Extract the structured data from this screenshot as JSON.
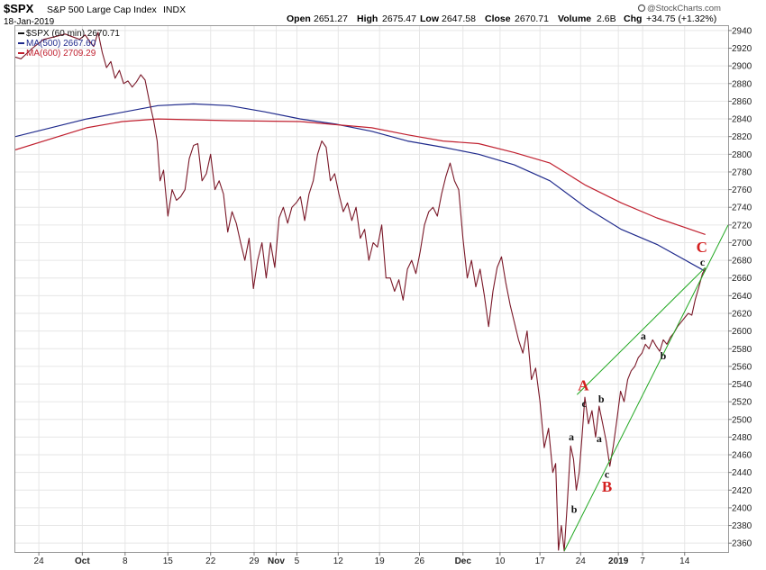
{
  "header": {
    "symbol": "$SPX",
    "name": "S&P 500 Large Cap Index",
    "exchange": "INDX",
    "date": "18-Jan-2019",
    "open_label": "Open",
    "open": "2651.27",
    "high_label": "High",
    "high": "2675.47",
    "low_label": "Low",
    "low": "2647.58",
    "close_label": "Close",
    "close": "2670.71",
    "volume_label": "Volume",
    "volume": "2.6B",
    "chg_label": "Chg",
    "chg": "+34.75 (+1.32%)",
    "watermark": "@StockCharts.com"
  },
  "chart_data": {
    "type": "line",
    "title": "$SPX S&P 500 Large Cap Index INDX",
    "interval": "60 min",
    "ylim": [
      2350,
      2945
    ],
    "y_ticks": [
      2360,
      2380,
      2400,
      2420,
      2440,
      2460,
      2480,
      2500,
      2520,
      2540,
      2560,
      2580,
      2600,
      2620,
      2640,
      2660,
      2680,
      2700,
      2720,
      2740,
      2760,
      2780,
      2800,
      2820,
      2840,
      2860,
      2880,
      2900,
      2920,
      2940
    ],
    "x_range": [
      0,
      100
    ],
    "x_ticks": [
      {
        "label": "24",
        "x": 3.3
      },
      {
        "label": "Oct",
        "x": 9.4
      },
      {
        "label": "8",
        "x": 15.4
      },
      {
        "label": "15",
        "x": 21.4
      },
      {
        "label": "22",
        "x": 27.4
      },
      {
        "label": "29",
        "x": 33.5
      },
      {
        "label": "Nov",
        "x": 36.6
      },
      {
        "label": "5",
        "x": 39.5
      },
      {
        "label": "12",
        "x": 45.3
      },
      {
        "label": "19",
        "x": 51.1
      },
      {
        "label": "26",
        "x": 56.7
      },
      {
        "label": "Dec",
        "x": 62.8
      },
      {
        "label": "10",
        "x": 68.0
      },
      {
        "label": "17",
        "x": 73.6
      },
      {
        "label": "24",
        "x": 79.3
      },
      {
        "label": "2019",
        "x": 84.6
      },
      {
        "label": "7",
        "x": 88.0
      },
      {
        "label": "14",
        "x": 93.9
      }
    ],
    "legend": [
      {
        "label": "$SPX (60 min) 2670.71",
        "color": "#111111"
      },
      {
        "label": "MA(500) 2667.60",
        "color": "#1f2a8c"
      },
      {
        "label": "MA(600) 2709.29",
        "color": "#c0202f"
      }
    ],
    "series": [
      {
        "name": "$SPX (60 min)",
        "color": "#7a1828",
        "points": [
          [
            0,
            2910
          ],
          [
            0.8,
            2908
          ],
          [
            1.6,
            2914
          ],
          [
            2.4,
            2920
          ],
          [
            3.2,
            2925
          ],
          [
            4,
            2930
          ],
          [
            5,
            2932
          ],
          [
            6,
            2934
          ],
          [
            7,
            2936
          ],
          [
            8,
            2933
          ],
          [
            9,
            2930
          ],
          [
            9.8,
            2935
          ],
          [
            10.4,
            2928
          ],
          [
            11,
            2922
          ],
          [
            11.6,
            2938
          ],
          [
            12.2,
            2915
          ],
          [
            12.8,
            2898
          ],
          [
            13.4,
            2905
          ],
          [
            14,
            2886
          ],
          [
            14.6,
            2895
          ],
          [
            15.2,
            2880
          ],
          [
            15.8,
            2883
          ],
          [
            16.4,
            2876
          ],
          [
            17,
            2882
          ],
          [
            17.6,
            2890
          ],
          [
            18.2,
            2884
          ],
          [
            18.8,
            2860
          ],
          [
            19.4,
            2838
          ],
          [
            19.9,
            2815
          ],
          [
            20.3,
            2770
          ],
          [
            20.8,
            2782
          ],
          [
            21.4,
            2730
          ],
          [
            22,
            2760
          ],
          [
            22.6,
            2748
          ],
          [
            23.2,
            2752
          ],
          [
            23.8,
            2760
          ],
          [
            24.4,
            2795
          ],
          [
            25,
            2810
          ],
          [
            25.6,
            2812
          ],
          [
            26.2,
            2770
          ],
          [
            26.8,
            2778
          ],
          [
            27.4,
            2800
          ],
          [
            28,
            2760
          ],
          [
            28.6,
            2770
          ],
          [
            29.2,
            2755
          ],
          [
            29.8,
            2712
          ],
          [
            30.4,
            2735
          ],
          [
            31,
            2722
          ],
          [
            31.6,
            2700
          ],
          [
            32.2,
            2680
          ],
          [
            32.8,
            2705
          ],
          [
            33.4,
            2648
          ],
          [
            34,
            2680
          ],
          [
            34.6,
            2700
          ],
          [
            35.2,
            2660
          ],
          [
            35.8,
            2700
          ],
          [
            36.4,
            2672
          ],
          [
            37,
            2728
          ],
          [
            37.6,
            2740
          ],
          [
            38.2,
            2722
          ],
          [
            38.8,
            2740
          ],
          [
            39.4,
            2745
          ],
          [
            40,
            2752
          ],
          [
            40.6,
            2725
          ],
          [
            41.2,
            2755
          ],
          [
            41.8,
            2770
          ],
          [
            42.4,
            2800
          ],
          [
            43,
            2815
          ],
          [
            43.6,
            2808
          ],
          [
            44.2,
            2770
          ],
          [
            44.8,
            2778
          ],
          [
            45.4,
            2755
          ],
          [
            46,
            2735
          ],
          [
            46.6,
            2745
          ],
          [
            47.2,
            2725
          ],
          [
            47.8,
            2740
          ],
          [
            48.4,
            2705
          ],
          [
            49,
            2715
          ],
          [
            49.6,
            2680
          ],
          [
            50.2,
            2700
          ],
          [
            50.8,
            2695
          ],
          [
            51.4,
            2720
          ],
          [
            52,
            2660
          ],
          [
            52.6,
            2660
          ],
          [
            53.2,
            2645
          ],
          [
            53.8,
            2658
          ],
          [
            54.4,
            2635
          ],
          [
            55,
            2670
          ],
          [
            55.6,
            2680
          ],
          [
            56.2,
            2665
          ],
          [
            56.8,
            2690
          ],
          [
            57.4,
            2720
          ],
          [
            58,
            2735
          ],
          [
            58.6,
            2740
          ],
          [
            59.2,
            2730
          ],
          [
            59.8,
            2755
          ],
          [
            60.4,
            2775
          ],
          [
            61,
            2790
          ],
          [
            61.6,
            2770
          ],
          [
            62.2,
            2760
          ],
          [
            62.8,
            2705
          ],
          [
            63.4,
            2660
          ],
          [
            64,
            2680
          ],
          [
            64.6,
            2650
          ],
          [
            65.2,
            2670
          ],
          [
            65.8,
            2640
          ],
          [
            66.4,
            2605
          ],
          [
            67,
            2645
          ],
          [
            67.6,
            2672
          ],
          [
            68.2,
            2684
          ],
          [
            68.8,
            2655
          ],
          [
            69.4,
            2630
          ],
          [
            70,
            2610
          ],
          [
            70.6,
            2590
          ],
          [
            71.2,
            2575
          ],
          [
            71.8,
            2600
          ],
          [
            72.4,
            2545
          ],
          [
            73,
            2558
          ],
          [
            73.6,
            2520
          ],
          [
            74.2,
            2468
          ],
          [
            74.8,
            2490
          ],
          [
            75.4,
            2440
          ],
          [
            75.8,
            2450
          ],
          [
            76.2,
            2352
          ],
          [
            76.6,
            2380
          ],
          [
            77,
            2351
          ],
          [
            77.4,
            2400
          ],
          [
            77.9,
            2470
          ],
          [
            78.3,
            2455
          ],
          [
            78.7,
            2420
          ],
          [
            79.1,
            2440
          ],
          [
            79.5,
            2480
          ],
          [
            79.9,
            2525
          ],
          [
            80.4,
            2495
          ],
          [
            80.9,
            2510
          ],
          [
            81.4,
            2480
          ],
          [
            81.9,
            2515
          ],
          [
            82.4,
            2495
          ],
          [
            82.9,
            2475
          ],
          [
            83.4,
            2447
          ],
          [
            83.9,
            2470
          ],
          [
            84.4,
            2500
          ],
          [
            84.9,
            2532
          ],
          [
            85.4,
            2520
          ],
          [
            85.9,
            2545
          ],
          [
            86.4,
            2555
          ],
          [
            86.9,
            2560
          ],
          [
            87.4,
            2570
          ],
          [
            87.9,
            2575
          ],
          [
            88.4,
            2585
          ],
          [
            88.9,
            2580
          ],
          [
            89.4,
            2590
          ],
          [
            89.9,
            2583
          ],
          [
            90.4,
            2577
          ],
          [
            90.9,
            2590
          ],
          [
            91.4,
            2585
          ],
          [
            91.9,
            2593
          ],
          [
            92.4,
            2598
          ],
          [
            92.9,
            2605
          ],
          [
            93.4,
            2610
          ],
          [
            93.9,
            2615
          ],
          [
            94.4,
            2620
          ],
          [
            94.9,
            2618
          ],
          [
            95.4,
            2636
          ],
          [
            95.9,
            2650
          ],
          [
            96.4,
            2665
          ],
          [
            96.8,
            2670.71
          ]
        ]
      },
      {
        "name": "MA(500)",
        "color": "#1f2a8c",
        "points": [
          [
            0,
            2820
          ],
          [
            10,
            2840
          ],
          [
            20,
            2855
          ],
          [
            25,
            2857
          ],
          [
            30,
            2855
          ],
          [
            35,
            2848
          ],
          [
            40,
            2840
          ],
          [
            45,
            2834
          ],
          [
            50,
            2826
          ],
          [
            55,
            2815
          ],
          [
            60,
            2808
          ],
          [
            65,
            2800
          ],
          [
            70,
            2788
          ],
          [
            75,
            2770
          ],
          [
            80,
            2740
          ],
          [
            85,
            2715
          ],
          [
            90,
            2698
          ],
          [
            96.8,
            2667.6
          ]
        ]
      },
      {
        "name": "MA(600)",
        "color": "#c0202f",
        "points": [
          [
            0,
            2805
          ],
          [
            10,
            2830
          ],
          [
            15,
            2837
          ],
          [
            20,
            2840
          ],
          [
            30,
            2838
          ],
          [
            40,
            2837
          ],
          [
            50,
            2830
          ],
          [
            55,
            2822
          ],
          [
            60,
            2815
          ],
          [
            65,
            2812
          ],
          [
            70,
            2802
          ],
          [
            75,
            2790
          ],
          [
            80,
            2765
          ],
          [
            85,
            2745
          ],
          [
            90,
            2728
          ],
          [
            96.8,
            2709.29
          ]
        ]
      }
    ],
    "trendlines": [
      {
        "name": "channel-upper",
        "color": "#22a822",
        "points": [
          [
            78.8,
            2528
          ],
          [
            96.8,
            2672
          ]
        ]
      },
      {
        "name": "channel-lower",
        "color": "#22a822",
        "points": [
          [
            77.0,
            2351
          ],
          [
            100,
            2720
          ]
        ]
      }
    ],
    "annotations": [
      {
        "text": "A",
        "x": 79.7,
        "y": 2537,
        "style": "major"
      },
      {
        "text": "B",
        "x": 83.0,
        "y": 2422,
        "style": "major"
      },
      {
        "text": "C",
        "x": 96.3,
        "y": 2693,
        "style": "major"
      },
      {
        "text": "a",
        "x": 78.0,
        "y": 2479,
        "style": "minor"
      },
      {
        "text": "b",
        "x": 78.4,
        "y": 2397,
        "style": "minor"
      },
      {
        "text": "c",
        "x": 79.8,
        "y": 2517,
        "style": "minor"
      },
      {
        "text": "b",
        "x": 82.2,
        "y": 2522,
        "style": "minor"
      },
      {
        "text": "a",
        "x": 81.9,
        "y": 2477,
        "style": "minor"
      },
      {
        "text": "c",
        "x": 83.0,
        "y": 2437,
        "style": "minor"
      },
      {
        "text": "a",
        "x": 88.1,
        "y": 2593,
        "style": "minor"
      },
      {
        "text": "b",
        "x": 90.9,
        "y": 2571,
        "style": "minor"
      },
      {
        "text": "c",
        "x": 96.4,
        "y": 2677,
        "style": "minor"
      }
    ]
  }
}
